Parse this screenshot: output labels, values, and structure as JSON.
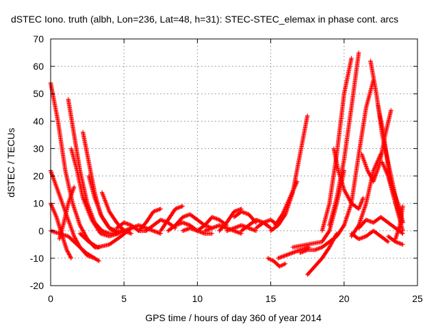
{
  "chart_data": {
    "type": "scatter",
    "title": "dSTEC Iono. truth (albh, Lon=236, Lat=48, h=31): STEC-STEC_elemax in phase cont. arcs",
    "xlabel": "GPS time / hours of day 360 of year 2014",
    "ylabel": "dSTEC  / TECUs",
    "xlim": [
      0,
      25
    ],
    "ylim": [
      -20,
      70
    ],
    "xticks": [
      0,
      5,
      10,
      15,
      20,
      25
    ],
    "yticks": [
      -20,
      -10,
      0,
      10,
      20,
      30,
      40,
      50,
      60,
      70
    ],
    "xtick_labels": [
      "0",
      "5",
      "10",
      "15",
      "20",
      "25"
    ],
    "ytick_labels": [
      "-20",
      "-10",
      "0",
      "10",
      "20",
      "30",
      "40",
      "50",
      "60",
      "70"
    ],
    "grid": true,
    "legend": "none",
    "marker": "plus",
    "color": "#ff0000",
    "series": [
      {
        "x": [
          0,
          0.5,
          1.0,
          1.5,
          2.0,
          2.5,
          3.0,
          3.3
        ],
        "y": [
          54,
          40,
          22,
          10,
          2,
          -3,
          -6,
          -6
        ]
      },
      {
        "x": [
          0,
          0.4,
          0.8,
          1.2,
          1.6,
          2.0,
          2.5,
          3.0,
          3.3
        ],
        "y": [
          22,
          16,
          10,
          4,
          -2,
          -6,
          -9,
          -10,
          -11
        ]
      },
      {
        "x": [
          0,
          0.4,
          0.8,
          1.1,
          1.4
        ],
        "y": [
          10,
          5,
          -2,
          -7,
          -10
        ]
      },
      {
        "x": [
          0,
          0.6,
          1.2,
          1.8,
          2.4,
          3.0
        ],
        "y": [
          0,
          -1,
          -2,
          -5,
          -8,
          -10
        ]
      },
      {
        "x": [
          0.6,
          0.9,
          1.2,
          1.6
        ],
        "y": [
          -3,
          3,
          10,
          16
        ]
      },
      {
        "x": [
          1.2,
          1.6,
          2.0,
          2.5,
          3.0,
          3.5,
          4.0,
          4.5
        ],
        "y": [
          48,
          35,
          22,
          10,
          3,
          0,
          -1,
          -1
        ]
      },
      {
        "x": [
          1.4,
          1.8,
          2.2,
          2.8,
          3.4,
          4.0,
          4.6
        ],
        "y": [
          30,
          22,
          12,
          4,
          -1,
          -2,
          -1
        ]
      },
      {
        "x": [
          2.2,
          2.6,
          3.0,
          3.4,
          4.0,
          4.6,
          5.0
        ],
        "y": [
          36,
          25,
          14,
          6,
          1,
          -1,
          0
        ]
      },
      {
        "x": [
          2.6,
          3.0,
          3.5,
          4.0,
          4.5,
          5.0
        ],
        "y": [
          20,
          12,
          5,
          1,
          0,
          0
        ]
      },
      {
        "x": [
          3.5,
          4.0,
          4.5,
          5.0,
          5.5
        ],
        "y": [
          14,
          7,
          3,
          0,
          -1
        ]
      },
      {
        "x": [
          2.0,
          2.6,
          3.2,
          4.0,
          4.8,
          5.5
        ],
        "y": [
          -1,
          -4,
          -6,
          -5,
          -2,
          1
        ]
      },
      {
        "x": [
          4.5,
          5.0,
          5.5,
          6.0,
          6.5
        ],
        "y": [
          1,
          3,
          2,
          0,
          0
        ]
      },
      {
        "x": [
          5.0,
          5.5,
          6.0,
          6.5,
          7.0,
          7.5
        ],
        "y": [
          0,
          1,
          2,
          1,
          0,
          -1
        ]
      },
      {
        "x": [
          6.0,
          6.5,
          7.0,
          7.5
        ],
        "y": [
          0,
          3,
          7,
          8
        ]
      },
      {
        "x": [
          6.5,
          7.0,
          7.5,
          8.0,
          8.5
        ],
        "y": [
          0,
          2,
          4,
          3,
          1
        ]
      },
      {
        "x": [
          7.5,
          8.0,
          8.5,
          9.0
        ],
        "y": [
          0,
          4,
          8,
          9
        ]
      },
      {
        "x": [
          8.0,
          8.5,
          9.0,
          9.5,
          10.0
        ],
        "y": [
          0,
          2,
          3,
          2,
          0
        ]
      },
      {
        "x": [
          8.5,
          9.0,
          9.5,
          10.0,
          10.5,
          11.0
        ],
        "y": [
          2,
          5,
          6,
          4,
          2,
          1
        ]
      },
      {
        "x": [
          9.0,
          9.5,
          10.0,
          10.5,
          11.0
        ],
        "y": [
          0,
          1,
          0,
          -1,
          -1
        ]
      },
      {
        "x": [
          10.0,
          10.5,
          11.0,
          11.5,
          12.0
        ],
        "y": [
          0,
          2,
          5,
          4,
          2
        ]
      },
      {
        "x": [
          10.5,
          11.0,
          11.5,
          12.0,
          12.5,
          13.0
        ],
        "y": [
          0,
          1,
          2,
          1,
          0,
          -1
        ]
      },
      {
        "x": [
          11.5,
          12.0,
          12.5,
          13.0
        ],
        "y": [
          0,
          3,
          7,
          8
        ]
      },
      {
        "x": [
          12.0,
          12.5,
          13.0,
          13.5,
          14.0
        ],
        "y": [
          0,
          1,
          2,
          1,
          0
        ]
      },
      {
        "x": [
          12.5,
          13.0,
          13.5,
          14.0
        ],
        "y": [
          5,
          7,
          6,
          3
        ]
      },
      {
        "x": [
          13.0,
          13.5,
          14.0,
          14.5,
          15.0
        ],
        "y": [
          0,
          2,
          4,
          3,
          1
        ]
      },
      {
        "x": [
          14.0,
          14.5,
          15.0,
          15.5
        ],
        "y": [
          1,
          3,
          4,
          2
        ]
      },
      {
        "x": [
          14.8,
          15.2,
          15.6,
          16.0
        ],
        "y": [
          -10,
          -11,
          -13,
          -12
        ]
      },
      {
        "x": [
          15.0,
          15.5,
          16.0,
          16.5,
          17.0,
          17.5
        ],
        "y": [
          0,
          2,
          6,
          14,
          28,
          42
        ]
      },
      {
        "x": [
          15.3,
          15.8,
          16.3,
          16.8
        ],
        "y": [
          2,
          6,
          12,
          18
        ]
      },
      {
        "x": [
          15.5,
          16.0,
          16.5,
          17.0,
          17.6
        ],
        "y": [
          -10,
          -9,
          -8,
          -7,
          -6
        ]
      },
      {
        "x": [
          17.5,
          18.0,
          18.5,
          19.0,
          19.5
        ],
        "y": [
          -16,
          -13,
          -10,
          -6,
          -1
        ]
      },
      {
        "x": [
          16.5,
          17.5,
          18.5,
          19.0,
          19.5,
          20.0
        ],
        "y": [
          -6,
          -5,
          -4,
          0,
          10,
          22
        ]
      },
      {
        "x": [
          17.0,
          17.5,
          18.0,
          18.5,
          19.0,
          19.5,
          20.0
        ],
        "y": [
          -8,
          -7,
          -7,
          -6,
          -4,
          -2,
          2
        ]
      },
      {
        "x": [
          18.5,
          19.0,
          19.5,
          20.0,
          20.5
        ],
        "y": [
          0,
          10,
          28,
          50,
          63
        ]
      },
      {
        "x": [
          19.0,
          19.5,
          20.0,
          20.5,
          21.0
        ],
        "y": [
          2,
          12,
          26,
          45,
          65
        ]
      },
      {
        "x": [
          19.3,
          19.6,
          20.0,
          20.5,
          21.0,
          21.3
        ],
        "y": [
          30,
          22,
          15,
          10,
          8,
          12
        ]
      },
      {
        "x": [
          20.0,
          20.5,
          21.0,
          21.5,
          22.0
        ],
        "y": [
          2,
          10,
          28,
          45,
          55
        ]
      },
      {
        "x": [
          20.5,
          21.0,
          21.5,
          22.0,
          22.5
        ],
        "y": [
          -2,
          2,
          10,
          22,
          28
        ]
      },
      {
        "x": [
          20.5,
          21.0,
          21.5,
          22.0,
          22.5,
          23.0
        ],
        "y": [
          -1,
          -3,
          -2,
          0,
          -2,
          -4
        ]
      },
      {
        "x": [
          21.0,
          21.5,
          22.0,
          22.5,
          23.0,
          23.5,
          24.0
        ],
        "y": [
          1,
          4,
          3,
          5,
          3,
          1,
          -1
        ]
      },
      {
        "x": [
          21.2,
          21.6,
          22.0,
          22.4,
          22.8,
          23.2
        ],
        "y": [
          28,
          22,
          18,
          24,
          35,
          44
        ]
      },
      {
        "x": [
          21.8,
          22.2,
          22.6,
          23.0,
          23.4,
          23.8
        ],
        "y": [
          62,
          50,
          35,
          25,
          15,
          5
        ]
      },
      {
        "x": [
          22.3,
          22.7,
          23.1,
          23.5,
          24.0
        ],
        "y": [
          46,
          35,
          20,
          10,
          3
        ]
      },
      {
        "x": [
          22.6,
          23.0,
          23.4,
          23.8,
          24.0
        ],
        "y": [
          25,
          20,
          14,
          8,
          3
        ]
      },
      {
        "x": [
          23.0,
          23.5,
          24.0
        ],
        "y": [
          20,
          10,
          0
        ]
      },
      {
        "x": [
          23.5,
          23.8,
          24.0
        ],
        "y": [
          -3,
          2,
          9
        ]
      },
      {
        "x": [
          23.0,
          23.5,
          24.0
        ],
        "y": [
          -2,
          -4,
          -5
        ]
      }
    ]
  }
}
